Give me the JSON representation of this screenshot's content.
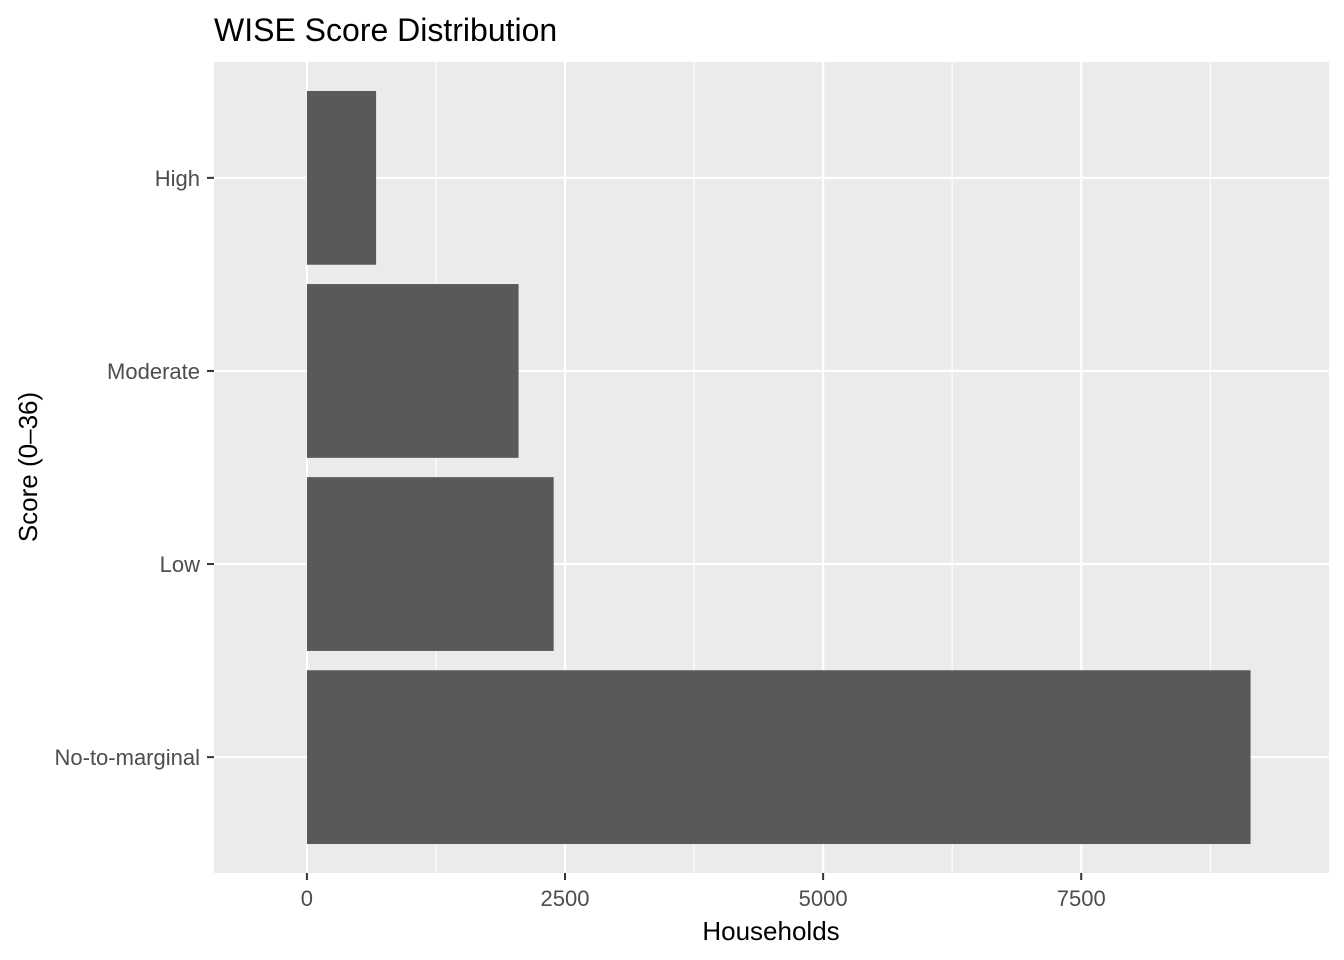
{
  "chart_data": {
    "type": "bar",
    "orientation": "horizontal",
    "title": "WISE Score Distribution",
    "xlabel": "Households",
    "ylabel": "Score (0–36)",
    "categories": [
      "No-to-marginal",
      "Low",
      "Moderate",
      "High"
    ],
    "values": [
      9140,
      2390,
      2050,
      670
    ],
    "xlim": [
      -900,
      9900
    ],
    "x_ticks": [
      0,
      2500,
      5000,
      7500
    ],
    "x_tick_labels": [
      "0",
      "2500",
      "5000",
      "7500"
    ],
    "grid": true,
    "legend": "none",
    "colors": {
      "bar": "#595959",
      "panel": "#ebebeb",
      "grid": "#ffffff",
      "tick": "#333333"
    }
  }
}
